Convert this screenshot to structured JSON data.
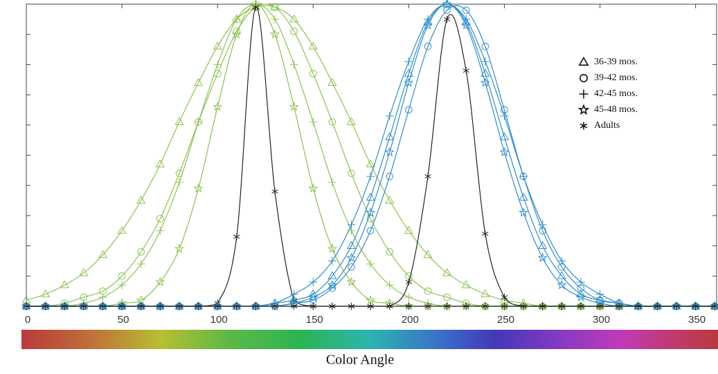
{
  "chart_data": {
    "type": "line",
    "xlabel": "Color Angle",
    "x": [
      0,
      10,
      20,
      30,
      40,
      50,
      60,
      70,
      80,
      90,
      100,
      110,
      120,
      130,
      140,
      150,
      160,
      170,
      180,
      190,
      200,
      210,
      220,
      230,
      240,
      250,
      260,
      270,
      280,
      290,
      300,
      310,
      320,
      330,
      340,
      350,
      360
    ],
    "xlim": [
      0,
      361
    ],
    "xticks": [
      0,
      50,
      100,
      150,
      200,
      250,
      300,
      350
    ],
    "ylim": [
      0,
      1
    ],
    "yticks": [
      0,
      0.1,
      0.2,
      0.3,
      0.4,
      0.5,
      0.6,
      0.7,
      0.8,
      0.9,
      1
    ],
    "series": [
      {
        "color": "#8cc152",
        "marker": "triangle",
        "values": [
          0.02,
          0.04,
          0.07,
          0.11,
          0.17,
          0.25,
          0.35,
          0.47,
          0.61,
          0.74,
          0.86,
          0.95,
          0.99,
          0.99,
          0.95,
          0.86,
          0.74,
          0.61,
          0.47,
          0.35,
          0.25,
          0.17,
          0.11,
          0.07,
          0.04,
          0.02,
          0.01,
          0,
          0,
          0,
          0,
          0,
          0,
          0,
          0,
          0,
          0
        ]
      },
      {
        "color": "#8cc152",
        "marker": "circle",
        "values": [
          0,
          0,
          0.01,
          0.03,
          0.05,
          0.1,
          0.18,
          0.29,
          0.44,
          0.61,
          0.77,
          0.91,
          0.99,
          0.99,
          0.91,
          0.77,
          0.61,
          0.44,
          0.29,
          0.18,
          0.1,
          0.05,
          0.03,
          0.01,
          0,
          0,
          0,
          0,
          0,
          0,
          0,
          0,
          0,
          0,
          0,
          0,
          0
        ]
      },
      {
        "color": "#8cc152",
        "marker": "plus",
        "values": [
          0,
          0,
          0,
          0.01,
          0.03,
          0.07,
          0.14,
          0.25,
          0.41,
          0.61,
          0.8,
          0.95,
          1,
          0.95,
          0.8,
          0.61,
          0.41,
          0.25,
          0.14,
          0.07,
          0.03,
          0.01,
          0,
          0,
          0,
          0,
          0,
          0,
          0,
          0,
          0,
          0,
          0,
          0,
          0,
          0,
          0
        ]
      },
      {
        "color": "#8cc152",
        "marker": "star",
        "values": [
          0,
          0,
          0,
          0,
          0,
          0.01,
          0.02,
          0.08,
          0.19,
          0.39,
          0.66,
          0.9,
          1,
          0.9,
          0.66,
          0.39,
          0.19,
          0.08,
          0.02,
          0.01,
          0,
          0,
          0,
          0,
          0,
          0,
          0,
          0,
          0,
          0,
          0,
          0,
          0,
          0,
          0,
          0,
          0
        ]
      },
      {
        "color": "#222222",
        "marker": "asterisk",
        "values": [
          0,
          0,
          0,
          0,
          0,
          0,
          0,
          0,
          0,
          0,
          0.01,
          0.23,
          0.99,
          0.38,
          0.02,
          0,
          0,
          0,
          0,
          0,
          0,
          0,
          0,
          0,
          0,
          0,
          0,
          0,
          0,
          0,
          0,
          0,
          0,
          0,
          0,
          0,
          0
        ]
      },
      {
        "color": "#2f8cc8",
        "marker": "triangle",
        "values": [
          0,
          0,
          0,
          0,
          0,
          0,
          0,
          0,
          0,
          0,
          0,
          0,
          0,
          0.01,
          0.02,
          0.04,
          0.1,
          0.2,
          0.36,
          0.56,
          0.77,
          0.94,
          1,
          0.94,
          0.77,
          0.56,
          0.36,
          0.2,
          0.1,
          0.04,
          0.02,
          0.01,
          0,
          0,
          0,
          0,
          0
        ]
      },
      {
        "color": "#2f8cc8",
        "marker": "circle",
        "values": [
          0,
          0,
          0,
          0,
          0,
          0,
          0,
          0,
          0,
          0,
          0,
          0,
          0,
          0,
          0.01,
          0.02,
          0.06,
          0.13,
          0.25,
          0.43,
          0.65,
          0.86,
          0.98,
          0.98,
          0.86,
          0.65,
          0.43,
          0.25,
          0.13,
          0.06,
          0.02,
          0.01,
          0,
          0,
          0,
          0,
          0
        ]
      },
      {
        "color": "#2f8cc8",
        "marker": "plus",
        "values": [
          0,
          0,
          0,
          0,
          0,
          0,
          0,
          0,
          0,
          0,
          0,
          0,
          0,
          0.01,
          0.04,
          0.08,
          0.15,
          0.27,
          0.43,
          0.63,
          0.81,
          0.95,
          1,
          0.95,
          0.81,
          0.63,
          0.43,
          0.27,
          0.15,
          0.08,
          0.04,
          0.01,
          0,
          0,
          0,
          0,
          0
        ]
      },
      {
        "color": "#2f8cc8",
        "marker": "star",
        "values": [
          0,
          0,
          0,
          0,
          0,
          0,
          0,
          0,
          0,
          0,
          0,
          0,
          0,
          0,
          0.01,
          0.03,
          0.07,
          0.16,
          0.31,
          0.51,
          0.74,
          0.93,
          1,
          0.93,
          0.74,
          0.51,
          0.31,
          0.16,
          0.07,
          0.03,
          0.01,
          0,
          0,
          0,
          0,
          0,
          0
        ]
      },
      {
        "color": "#222222",
        "marker": "asterisk",
        "values": [
          0,
          0,
          0,
          0,
          0,
          0,
          0,
          0,
          0,
          0,
          0,
          0,
          0,
          0,
          0,
          0,
          0,
          0,
          0,
          0,
          0.08,
          0.43,
          0.95,
          0.78,
          0.24,
          0.03,
          0,
          0,
          0,
          0,
          0,
          0,
          0,
          0,
          0,
          0,
          0
        ]
      }
    ],
    "legend": {
      "position": "upper right",
      "entries": [
        {
          "name": "36-39 mos.",
          "marker": "triangle"
        },
        {
          "name": "39-42 mos.",
          "marker": "circle"
        },
        {
          "name": "42-45 mos.",
          "marker": "plus"
        },
        {
          "name": "45-48 mos.",
          "marker": "star"
        },
        {
          "name": "Adults",
          "marker": "asterisk"
        }
      ]
    }
  }
}
